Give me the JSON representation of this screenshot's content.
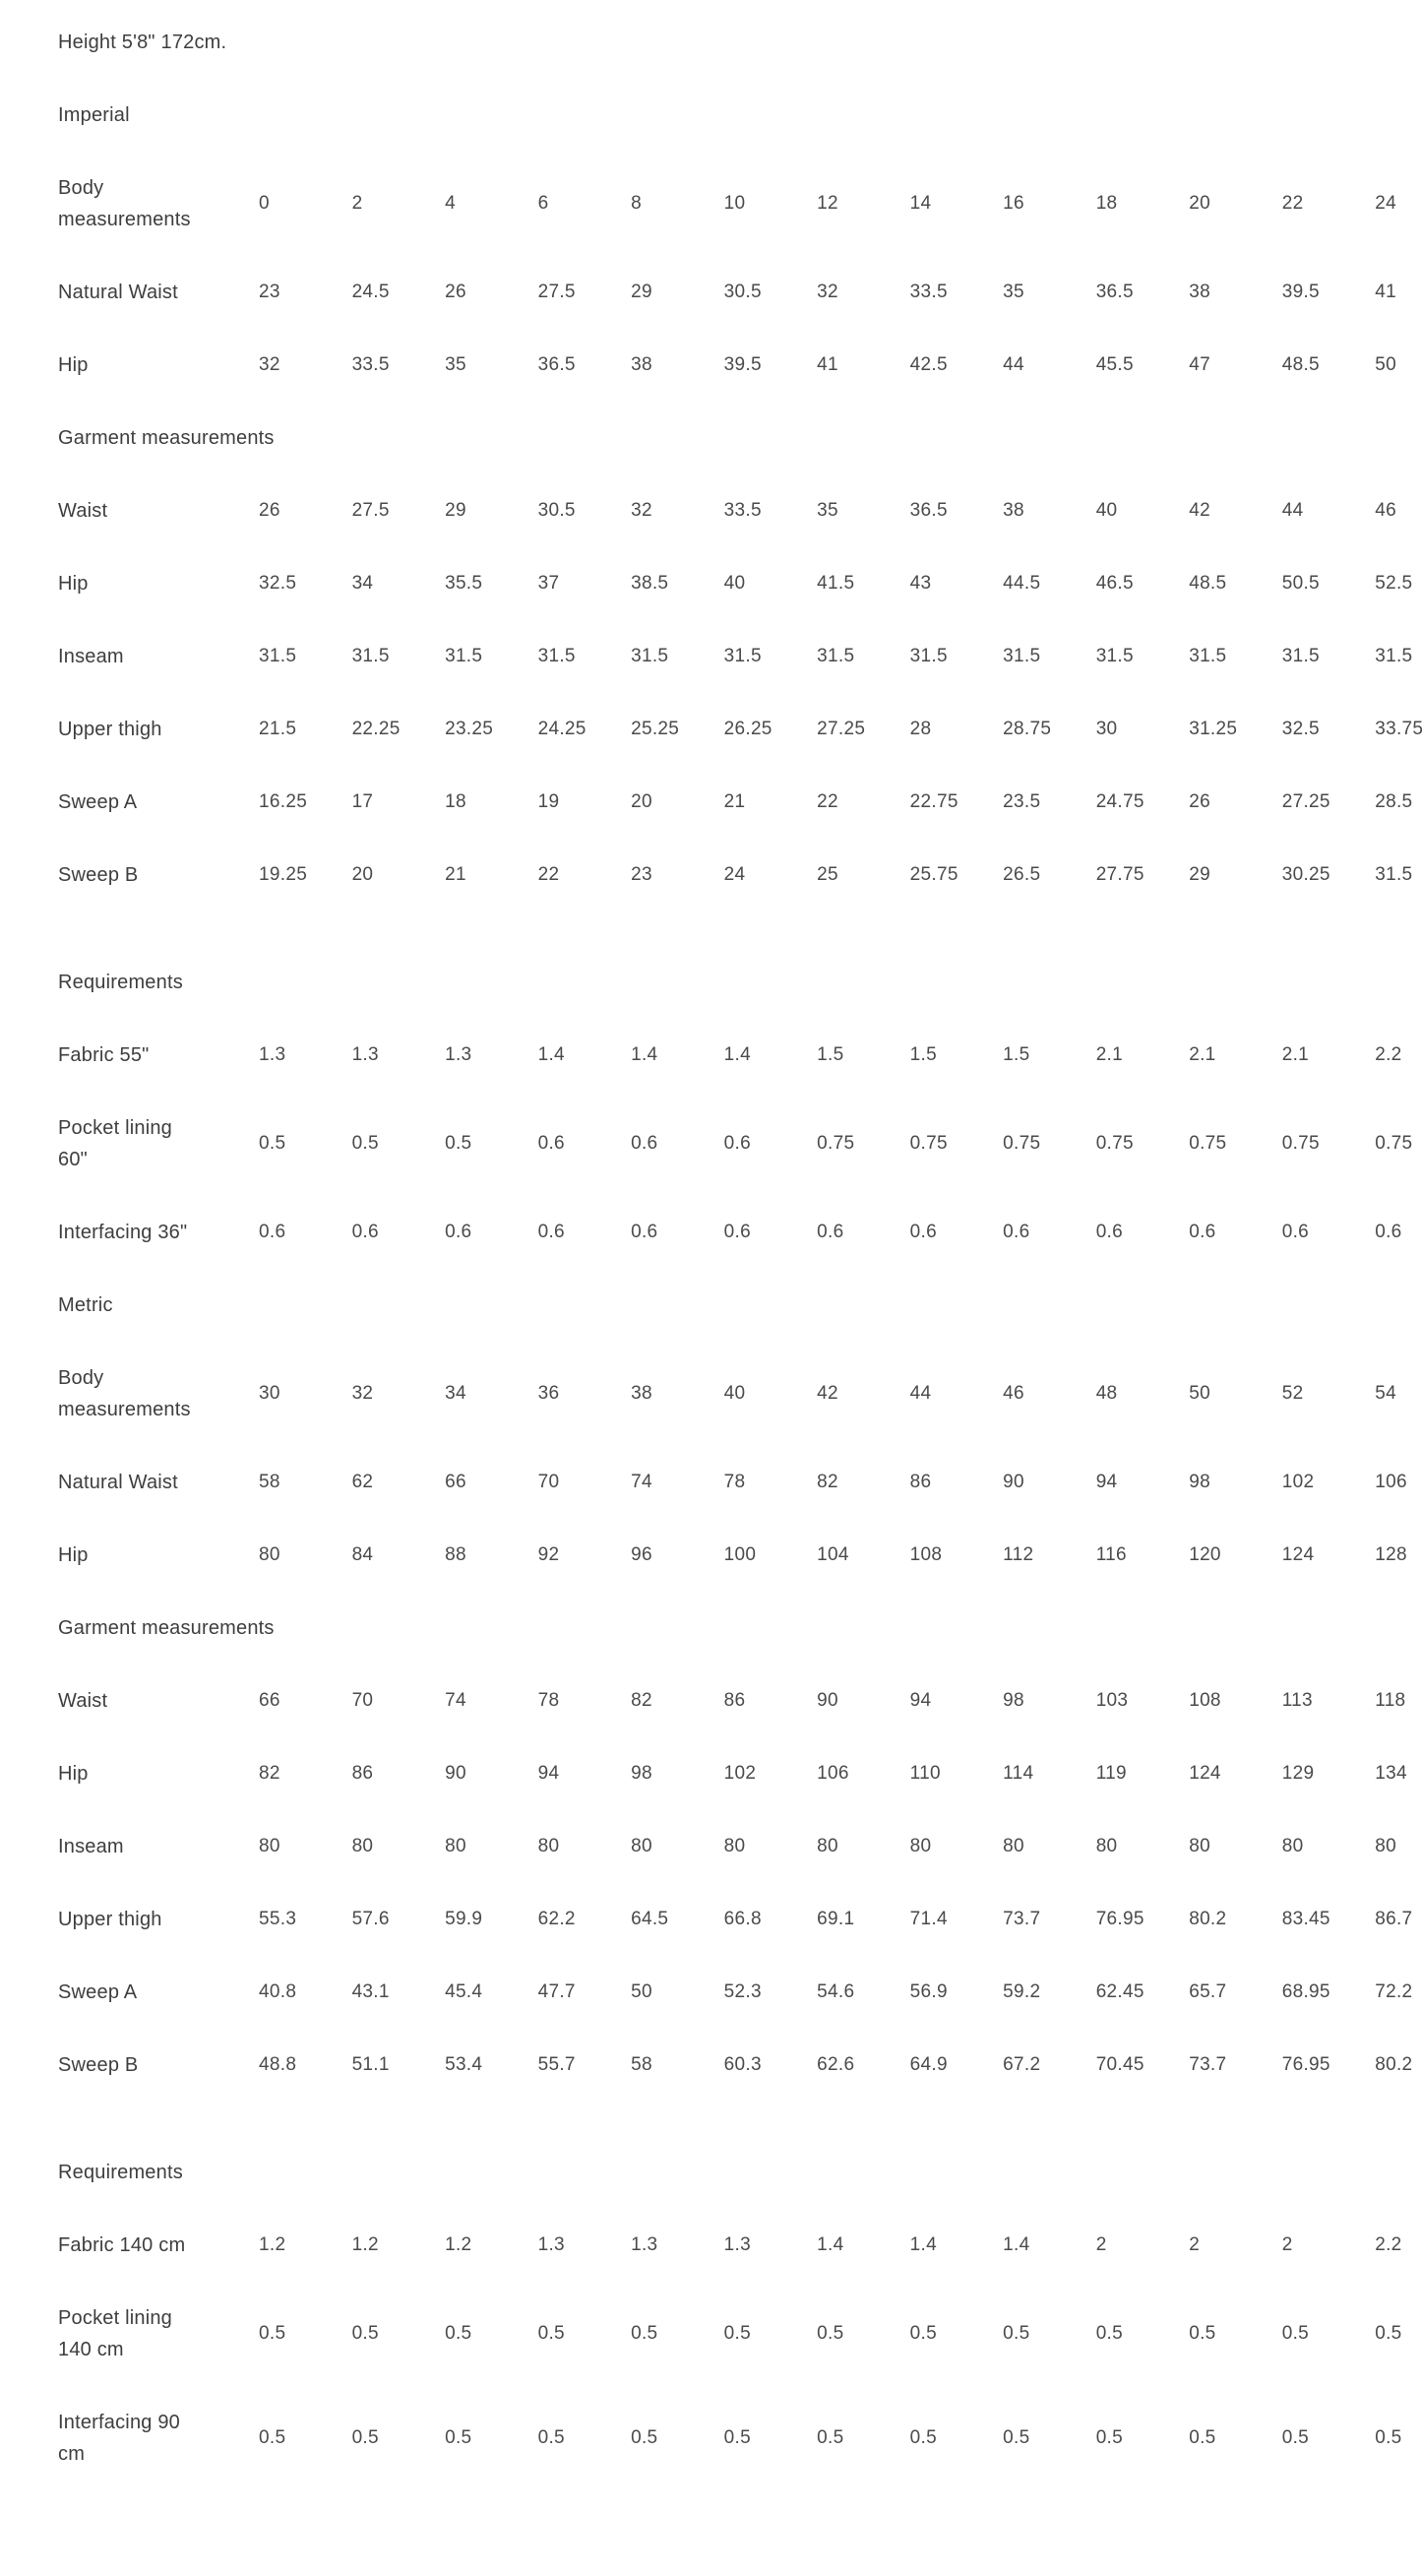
{
  "page": {
    "background_color": "#ffffff",
    "label_text_color": "#3e3e3e",
    "value_text_color": "#4a4a4a"
  },
  "table": {
    "rows": [
      {
        "type": "section",
        "label": "Height 5'8\" 172cm."
      },
      {
        "type": "section",
        "label": "Imperial"
      },
      {
        "type": "data",
        "label": "Body measurements",
        "values": [
          "0",
          "2",
          "4",
          "6",
          "8",
          "10",
          "12",
          "14",
          "16",
          "18",
          "20",
          "22",
          "24"
        ]
      },
      {
        "type": "data",
        "label": "Natural Waist",
        "values": [
          "23",
          "24.5",
          "26",
          "27.5",
          "29",
          "30.5",
          "32",
          "33.5",
          "35",
          "36.5",
          "38",
          "39.5",
          "41"
        ]
      },
      {
        "type": "data",
        "label": "Hip",
        "values": [
          "32",
          "33.5",
          "35",
          "36.5",
          "38",
          "39.5",
          "41",
          "42.5",
          "44",
          "45.5",
          "47",
          "48.5",
          "50"
        ]
      },
      {
        "type": "section",
        "label": "Garment measurements"
      },
      {
        "type": "data",
        "label": "Waist",
        "values": [
          "26",
          "27.5",
          "29",
          "30.5",
          "32",
          "33.5",
          "35",
          "36.5",
          "38",
          "40",
          "42",
          "44",
          "46"
        ]
      },
      {
        "type": "data",
        "label": "Hip",
        "values": [
          "32.5",
          "34",
          "35.5",
          "37",
          "38.5",
          "40",
          "41.5",
          "43",
          "44.5",
          "46.5",
          "48.5",
          "50.5",
          "52.5"
        ]
      },
      {
        "type": "data",
        "label": "Inseam",
        "values": [
          "31.5",
          "31.5",
          "31.5",
          "31.5",
          "31.5",
          "31.5",
          "31.5",
          "31.5",
          "31.5",
          "31.5",
          "31.5",
          "31.5",
          "31.5"
        ]
      },
      {
        "type": "data",
        "label": "Upper thigh",
        "values": [
          "21.5",
          "22.25",
          "23.25",
          "24.25",
          "25.25",
          "26.25",
          "27.25",
          "28",
          "28.75",
          "30",
          "31.25",
          "32.5",
          "33.75"
        ]
      },
      {
        "type": "data",
        "label": "Sweep A",
        "values": [
          "16.25",
          "17",
          "18",
          "19",
          "20",
          "21",
          "22",
          "22.75",
          "23.5",
          "24.75",
          "26",
          "27.25",
          "28.5"
        ]
      },
      {
        "type": "data",
        "label": "Sweep B",
        "values": [
          "19.25",
          "20",
          "21",
          "22",
          "23",
          "24",
          "25",
          "25.75",
          "26.5",
          "27.75",
          "29",
          "30.25",
          "31.5"
        ]
      },
      {
        "type": "spacer"
      },
      {
        "type": "section",
        "label": "Requirements"
      },
      {
        "type": "data",
        "label": "Fabric 55\"",
        "values": [
          "1.3",
          "1.3",
          "1.3",
          "1.4",
          "1.4",
          "1.4",
          "1.5",
          "1.5",
          "1.5",
          "2.1",
          "2.1",
          "2.1",
          "2.2"
        ]
      },
      {
        "type": "data",
        "label": "Pocket lining 60\"",
        "values": [
          "0.5",
          "0.5",
          "0.5",
          "0.6",
          "0.6",
          "0.6",
          "0.75",
          "0.75",
          "0.75",
          "0.75",
          "0.75",
          "0.75",
          "0.75"
        ]
      },
      {
        "type": "data",
        "label": "Interfacing 36\"",
        "values": [
          "0.6",
          "0.6",
          "0.6",
          "0.6",
          "0.6",
          "0.6",
          "0.6",
          "0.6",
          "0.6",
          "0.6",
          "0.6",
          "0.6",
          "0.6"
        ]
      },
      {
        "type": "section",
        "label": "Metric"
      },
      {
        "type": "data",
        "label": "Body measurements",
        "values": [
          "30",
          "32",
          "34",
          "36",
          "38",
          "40",
          "42",
          "44",
          "46",
          "48",
          "50",
          "52",
          "54"
        ]
      },
      {
        "type": "data",
        "label": "Natural Waist",
        "values": [
          "58",
          "62",
          "66",
          "70",
          "74",
          "78",
          "82",
          "86",
          "90",
          "94",
          "98",
          "102",
          "106"
        ]
      },
      {
        "type": "data",
        "label": "Hip",
        "values": [
          "80",
          "84",
          "88",
          "92",
          "96",
          "100",
          "104",
          "108",
          "112",
          "116",
          "120",
          "124",
          "128"
        ]
      },
      {
        "type": "section",
        "label": "Garment measurements"
      },
      {
        "type": "data",
        "label": "Waist",
        "values": [
          "66",
          "70",
          "74",
          "78",
          "82",
          "86",
          "90",
          "94",
          "98",
          "103",
          "108",
          "113",
          "118"
        ]
      },
      {
        "type": "data",
        "label": "Hip",
        "values": [
          "82",
          "86",
          "90",
          "94",
          "98",
          "102",
          "106",
          "110",
          "114",
          "119",
          "124",
          "129",
          "134"
        ]
      },
      {
        "type": "data",
        "label": "Inseam",
        "values": [
          "80",
          "80",
          "80",
          "80",
          "80",
          "80",
          "80",
          "80",
          "80",
          "80",
          "80",
          "80",
          "80"
        ]
      },
      {
        "type": "data",
        "label": "Upper thigh",
        "values": [
          "55.3",
          "57.6",
          "59.9",
          "62.2",
          "64.5",
          "66.8",
          "69.1",
          "71.4",
          "73.7",
          "76.95",
          "80.2",
          "83.45",
          "86.7"
        ]
      },
      {
        "type": "data",
        "label": "Sweep A",
        "values": [
          "40.8",
          "43.1",
          "45.4",
          "47.7",
          "50",
          "52.3",
          "54.6",
          "56.9",
          "59.2",
          "62.45",
          "65.7",
          "68.95",
          "72.2"
        ]
      },
      {
        "type": "data",
        "label": "Sweep B",
        "values": [
          "48.8",
          "51.1",
          "53.4",
          "55.7",
          "58",
          "60.3",
          "62.6",
          "64.9",
          "67.2",
          "70.45",
          "73.7",
          "76.95",
          "80.2"
        ]
      },
      {
        "type": "spacer"
      },
      {
        "type": "section",
        "label": "Requirements"
      },
      {
        "type": "data",
        "label": "Fabric 140 cm",
        "values": [
          "1.2",
          "1.2",
          "1.2",
          "1.3",
          "1.3",
          "1.3",
          "1.4",
          "1.4",
          "1.4",
          "2",
          "2",
          "2",
          "2.2"
        ]
      },
      {
        "type": "data",
        "label": "Pocket lining 140 cm",
        "values": [
          "0.5",
          "0.5",
          "0.5",
          "0.5",
          "0.5",
          "0.5",
          "0.5",
          "0.5",
          "0.5",
          "0.5",
          "0.5",
          "0.5",
          "0.5"
        ]
      },
      {
        "type": "data",
        "label": "Interfacing 90 cm",
        "values": [
          "0.5",
          "0.5",
          "0.5",
          "0.5",
          "0.5",
          "0.5",
          "0.5",
          "0.5",
          "0.5",
          "0.5",
          "0.5",
          "0.5",
          "0.5"
        ]
      }
    ]
  }
}
